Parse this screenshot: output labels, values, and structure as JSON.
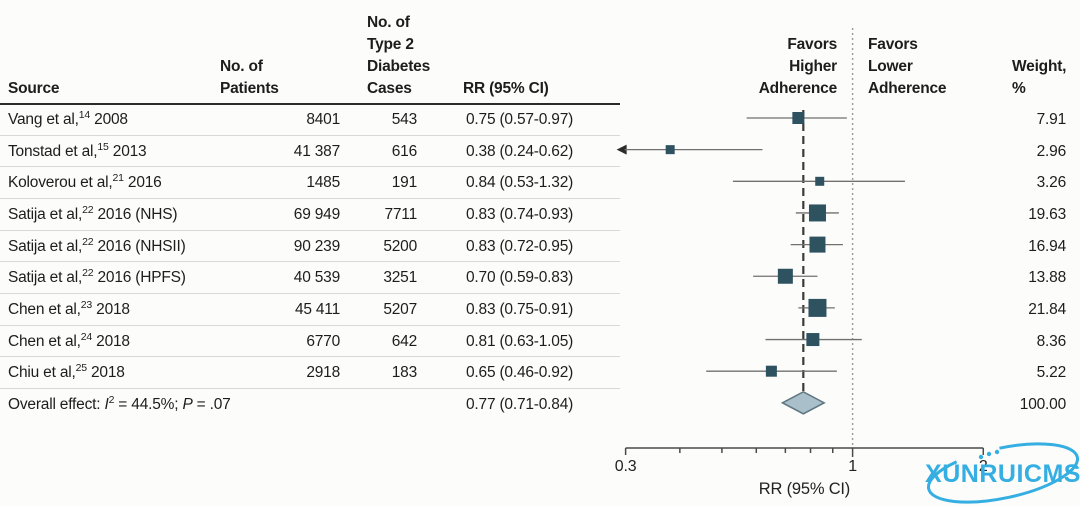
{
  "table": {
    "columns": {
      "source": "Source",
      "patients": [
        "No. of",
        "Patients"
      ],
      "cases": [
        "No. of",
        "Type 2",
        "Diabetes",
        "Cases"
      ],
      "rr": "RR (95% CI)",
      "weight": [
        "Weight,",
        "%"
      ]
    }
  },
  "plot_headers": {
    "favors_left": [
      "Favors",
      "Higher",
      "Adherence"
    ],
    "favors_right": [
      "Favors",
      "Lower",
      "Adherence"
    ]
  },
  "chart_data": {
    "type": "forest",
    "x_scale": "log",
    "x_min": 0.3,
    "x_max": 2,
    "x_ticks": [
      0.3,
      0.4,
      0.5,
      0.6,
      0.7,
      0.8,
      0.9,
      1,
      2
    ],
    "labeled_ticks": [
      "0.3",
      "1",
      "2"
    ],
    "labeled_tick_values": [
      0.3,
      1,
      2
    ],
    "xlabel": "RR (95% CI)",
    "reference_value": 1,
    "overall_value": 0.77,
    "studies": [
      {
        "source_pre": "Vang et al,",
        "source_sup": "14",
        "source_post": " 2008",
        "patients": "8401",
        "cases": "543",
        "rr": 0.75,
        "ci_low": 0.57,
        "ci_high": 0.97,
        "rr_label": "0.75 (0.57-0.97)",
        "weight": 7.91,
        "weight_label": "7.91"
      },
      {
        "source_pre": "Tonstad et al,",
        "source_sup": "15",
        "source_post": " 2013",
        "patients": "41 387",
        "cases": "616",
        "rr": 0.38,
        "ci_low": 0.24,
        "ci_high": 0.62,
        "rr_label": "0.38 (0.24-0.62)",
        "weight": 2.96,
        "weight_label": "2.96"
      },
      {
        "source_pre": "Koloverou et al,",
        "source_sup": "21",
        "source_post": " 2016",
        "patients": "1485",
        "cases": "191",
        "rr": 0.84,
        "ci_low": 0.53,
        "ci_high": 1.32,
        "rr_label": "0.84 (0.53-1.32)",
        "weight": 3.26,
        "weight_label": "3.26"
      },
      {
        "source_pre": "Satija et al,",
        "source_sup": "22",
        "source_post": " 2016 (NHS)",
        "patients": "69 949",
        "cases": "7711",
        "rr": 0.83,
        "ci_low": 0.74,
        "ci_high": 0.93,
        "rr_label": "0.83 (0.74-0.93)",
        "weight": 19.63,
        "weight_label": "19.63"
      },
      {
        "source_pre": "Satija et al,",
        "source_sup": "22",
        "source_post": " 2016 (NHSII)",
        "patients": "90 239",
        "cases": "5200",
        "rr": 0.83,
        "ci_low": 0.72,
        "ci_high": 0.95,
        "rr_label": "0.83 (0.72-0.95)",
        "weight": 16.94,
        "weight_label": "16.94"
      },
      {
        "source_pre": "Satija et al,",
        "source_sup": "22",
        "source_post": " 2016 (HPFS)",
        "patients": "40 539",
        "cases": "3251",
        "rr": 0.7,
        "ci_low": 0.59,
        "ci_high": 0.83,
        "rr_label": "0.70 (0.59-0.83)",
        "weight": 13.88,
        "weight_label": "13.88"
      },
      {
        "source_pre": "Chen et al,",
        "source_sup": "23",
        "source_post": " 2018",
        "patients": "45 411",
        "cases": "5207",
        "rr": 0.83,
        "ci_low": 0.75,
        "ci_high": 0.91,
        "rr_label": "0.83 (0.75-0.91)",
        "weight": 21.84,
        "weight_label": "21.84"
      },
      {
        "source_pre": "Chen et al,",
        "source_sup": "24",
        "source_post": " 2018",
        "patients": "6770",
        "cases": "642",
        "rr": 0.81,
        "ci_low": 0.63,
        "ci_high": 1.05,
        "rr_label": "0.81 (0.63-1.05)",
        "weight": 8.36,
        "weight_label": "8.36"
      },
      {
        "source_pre": "Chiu et al,",
        "source_sup": "25",
        "source_post": " 2018",
        "patients": "2918",
        "cases": "183",
        "rr": 0.65,
        "ci_low": 0.46,
        "ci_high": 0.92,
        "rr_label": "0.65 (0.46-0.92)",
        "weight": 5.22,
        "weight_label": "5.22"
      }
    ],
    "overall": {
      "label_pre": "Overall effect: ",
      "stat_i": "I",
      "stat_i_sup": "2",
      "stat_i_rest": " = 44.5%; ",
      "stat_p": "P",
      "stat_p_rest": " = .07",
      "rr": 0.77,
      "ci_low": 0.71,
      "ci_high": 0.84,
      "rr_label": "0.77 (0.71-0.84)",
      "weight_label": "100.00"
    }
  },
  "watermark": {
    "text": "XUNRUICMS"
  },
  "colors": {
    "page_bg": "#fcfcfb",
    "text": "#1d1d1d",
    "header_rule": "#2b2b2b",
    "separator": "#d8d8d8",
    "marker": "#2e5260",
    "diamond_fill": "#a9c0cb",
    "diamond_stroke": "#5f7780",
    "ci_line": "#707070",
    "dashed_line": "#3a3a3a",
    "dotted_line": "#9a9a9a",
    "axis": "#4a4a4a",
    "watermark": "#35aee2"
  }
}
